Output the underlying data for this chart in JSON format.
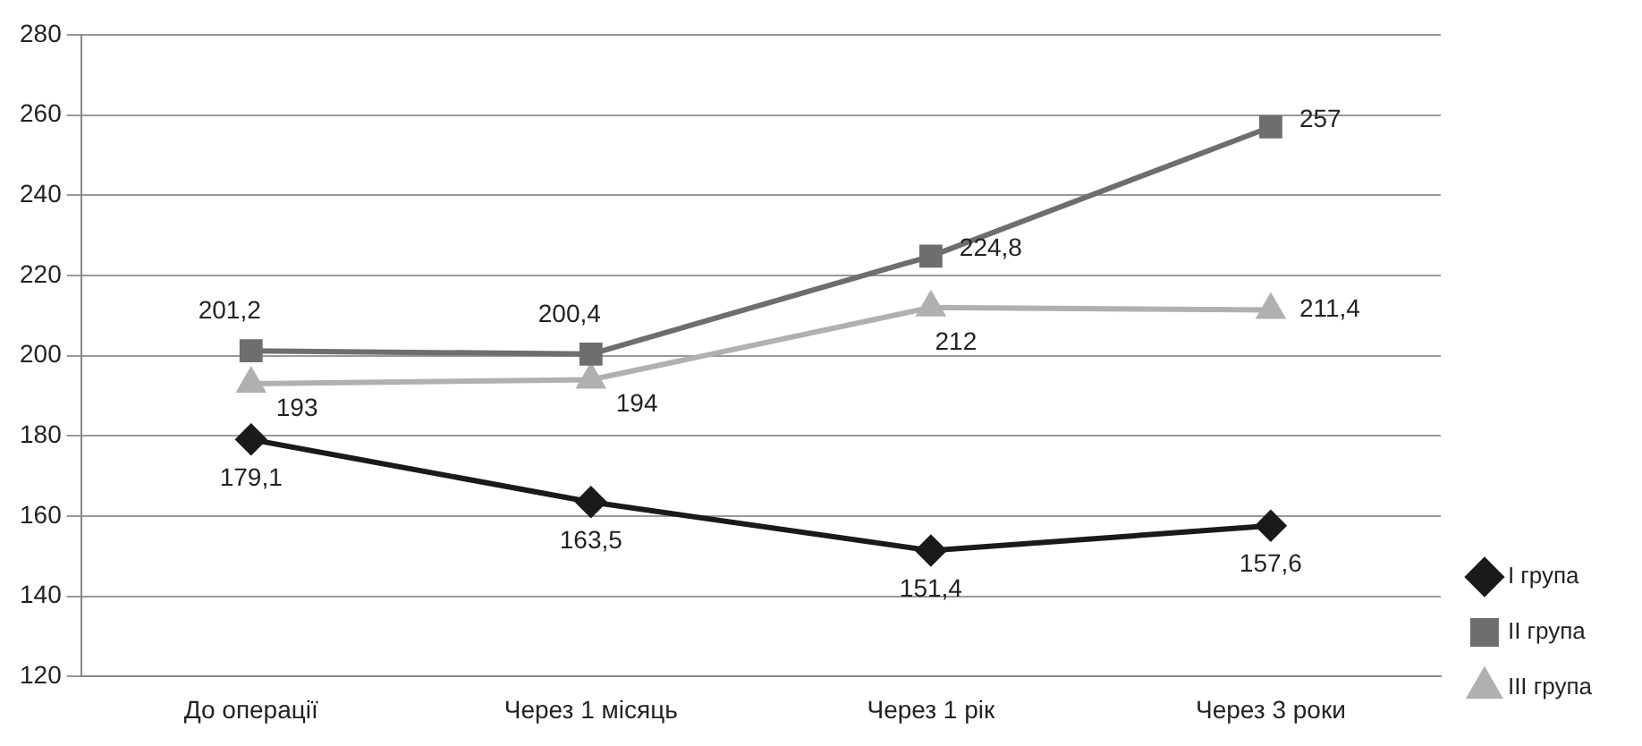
{
  "chart_data": {
    "type": "line",
    "categories": [
      "До операції",
      "Через 1 місяць",
      "Через 1 рік",
      "Через 3 роки"
    ],
    "series": [
      {
        "name": "I група",
        "color": "#1a1a1a",
        "marker": "diamond",
        "values": [
          179.1,
          163.5,
          151.4,
          157.6
        ],
        "value_labels": [
          "179,1",
          "163,5",
          "151,4",
          "157,6"
        ]
      },
      {
        "name": "II група",
        "color": "#6e6e6e",
        "marker": "square",
        "values": [
          201.2,
          200.4,
          224.8,
          257
        ],
        "value_labels": [
          "201,2",
          "200,4",
          "224,8",
          "257"
        ]
      },
      {
        "name": "III група",
        "color": "#b0b0b0",
        "marker": "triangle",
        "values": [
          193,
          194,
          212,
          211.4
        ],
        "value_labels": [
          "193",
          "194",
          "212",
          "211,4"
        ]
      }
    ],
    "ylim": [
      120,
      280
    ],
    "yticks": [
      120,
      140,
      160,
      180,
      200,
      220,
      240,
      260,
      280
    ],
    "grid": "y",
    "legend": "right",
    "line_style": "solid"
  }
}
